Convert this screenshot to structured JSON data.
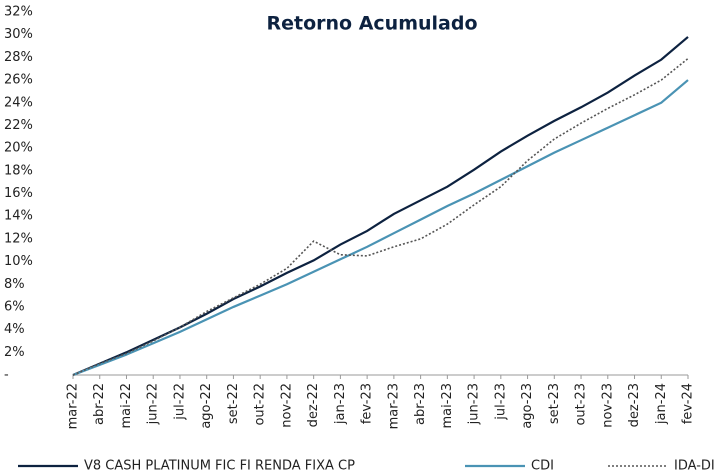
{
  "chart_data": {
    "type": "line",
    "title": "Retorno Acumulado",
    "categories": [
      "mar-22",
      "abr-22",
      "mai-22",
      "jun-22",
      "jul-22",
      "ago-22",
      "set-22",
      "out-22",
      "nov-22",
      "dez-22",
      "jan-23",
      "fev-23",
      "mar-23",
      "abr-23",
      "mai-23",
      "jun-23",
      "jul-23",
      "ago-23",
      "set-23",
      "out-23",
      "nov-23",
      "dez-23",
      "jan-24",
      "fev-24"
    ],
    "series": [
      {
        "name": "V8 CASH PLATINUM FIC FI RENDA FIXA CP",
        "color": "#0d2240",
        "dash": "solid",
        "values": [
          0,
          1.0,
          2.0,
          3.1,
          4.2,
          5.4,
          6.7,
          7.8,
          9.0,
          10.1,
          11.5,
          12.7,
          14.2,
          15.4,
          16.6,
          18.1,
          19.7,
          21.1,
          22.4,
          23.6,
          24.9,
          26.4,
          27.8,
          29.8
        ]
      },
      {
        "name": "CDI",
        "color": "#4a93b4",
        "dash": "solid",
        "values": [
          0,
          0.9,
          1.8,
          2.8,
          3.8,
          4.9,
          6.0,
          7.0,
          8.0,
          9.1,
          10.2,
          11.3,
          12.5,
          13.7,
          14.9,
          16.0,
          17.2,
          18.4,
          19.6,
          20.7,
          21.8,
          22.9,
          24.0,
          26.0
        ]
      },
      {
        "name": "IDA-DI",
        "color": "#555555",
        "dash": "dotted",
        "values": [
          0,
          1.0,
          1.9,
          3.0,
          4.2,
          5.6,
          6.8,
          8.0,
          9.4,
          11.8,
          10.6,
          10.5,
          11.3,
          12.0,
          13.3,
          15.0,
          16.6,
          18.9,
          20.8,
          22.2,
          23.5,
          24.7,
          26.0,
          27.9
        ]
      }
    ],
    "ylim": [
      0,
      32
    ],
    "yticks": [
      {
        "value": 0,
        "label": "-"
      },
      {
        "value": 2,
        "label": "2%"
      },
      {
        "value": 4,
        "label": "4%"
      },
      {
        "value": 6,
        "label": "6%"
      },
      {
        "value": 8,
        "label": "8%"
      },
      {
        "value": 10,
        "label": "10%"
      },
      {
        "value": 12,
        "label": "12%"
      },
      {
        "value": 14,
        "label": "14%"
      },
      {
        "value": 16,
        "label": "16%"
      },
      {
        "value": 18,
        "label": "18%"
      },
      {
        "value": 20,
        "label": "20%"
      },
      {
        "value": 22,
        "label": "22%"
      },
      {
        "value": 24,
        "label": "24%"
      },
      {
        "value": 26,
        "label": "26%"
      },
      {
        "value": 28,
        "label": "28%"
      },
      {
        "value": 30,
        "label": "30%"
      },
      {
        "value": 32,
        "label": "32%"
      }
    ],
    "legend": "bottom"
  }
}
